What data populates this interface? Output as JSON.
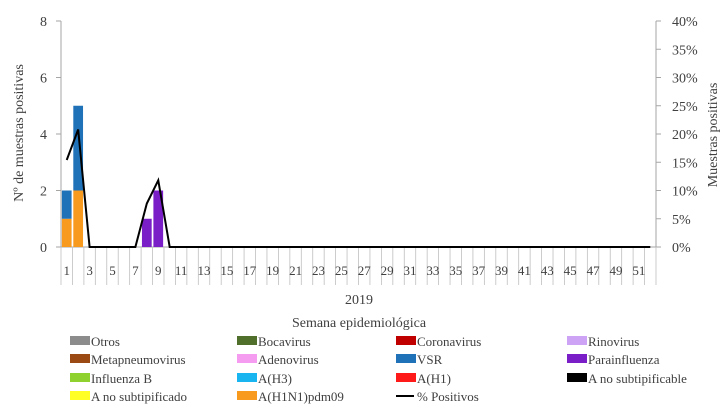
{
  "chart_data": {
    "type": "bar",
    "x_label": "Semana epidemiológica",
    "year_label": "2019",
    "y_label": "Nº de muestras positivas",
    "y2_label": "Muestras positivas",
    "y_ticks": [
      "0",
      "2",
      "4",
      "6",
      "8"
    ],
    "y2_ticks": [
      "0%",
      "5%",
      "10%",
      "15%",
      "20%",
      "25%",
      "30%",
      "35%",
      "40%"
    ],
    "ylim": [
      0,
      8
    ],
    "y2lim": [
      0,
      40
    ],
    "weeks": [
      1,
      2,
      3,
      4,
      5,
      6,
      7,
      8,
      9,
      10,
      11,
      12,
      13,
      14,
      15,
      16,
      17,
      18,
      19,
      20,
      21,
      22,
      23,
      24,
      25,
      26,
      27,
      28,
      29,
      30,
      31,
      32,
      33,
      34,
      35,
      36,
      37,
      38,
      39,
      40,
      41,
      42,
      43,
      44,
      45,
      46,
      47,
      48,
      49,
      50,
      51,
      52
    ],
    "x_tick_labels": [
      "1",
      "3",
      "5",
      "7",
      "9",
      "11",
      "13",
      "15",
      "17",
      "19",
      "21",
      "23",
      "25",
      "27",
      "29",
      "31",
      "33",
      "35",
      "37",
      "39",
      "41",
      "43",
      "45",
      "47",
      "49",
      "51"
    ],
    "stacked_series": [
      {
        "name": "A(H1N1)pdm09",
        "color": "#F79A1E",
        "values": {
          "1": 1,
          "2": 2
        }
      },
      {
        "name": "VSR",
        "color": "#1F72B8",
        "values": {
          "1": 1,
          "2": 3
        }
      },
      {
        "name": "Parainfluenza",
        "color": "#7A1FC7",
        "values": {
          "8": 1,
          "9": 2
        }
      }
    ],
    "line_series": {
      "name": "% Positivos",
      "color": "#000000",
      "values": [
        15.4,
        20.8,
        0,
        0,
        0,
        0,
        0,
        7.7,
        11.8,
        0,
        0,
        0,
        0,
        0,
        0,
        0,
        0,
        0,
        0,
        0,
        0,
        0,
        0,
        0,
        0,
        0,
        0,
        0,
        0,
        0,
        0,
        0,
        0,
        0,
        0,
        0,
        0,
        0,
        0,
        0,
        0,
        0,
        0,
        0,
        0,
        0,
        0,
        0,
        0,
        0,
        0,
        0
      ]
    },
    "legend": [
      {
        "label": "Otros",
        "color": "#8C8C8C",
        "kind": "box"
      },
      {
        "label": "Bocavirus",
        "color": "#4F6F2A",
        "kind": "box"
      },
      {
        "label": "Coronavirus",
        "color": "#C00000",
        "kind": "box"
      },
      {
        "label": "Rinovirus",
        "color": "#CCA3F5",
        "kind": "box"
      },
      {
        "label": "Metapneumovirus",
        "color": "#9C4A14",
        "kind": "box"
      },
      {
        "label": "Adenovirus",
        "color": "#F59CF0",
        "kind": "box"
      },
      {
        "label": "VSR",
        "color": "#1F72B8",
        "kind": "box"
      },
      {
        "label": "Parainfluenza",
        "color": "#7A1FC7",
        "kind": "box"
      },
      {
        "label": "Influenza  B",
        "color": "#8FD12E",
        "kind": "box"
      },
      {
        "label": "A(H3)",
        "color": "#19B5F0",
        "kind": "box"
      },
      {
        "label": "A(H1)",
        "color": "#FF1A1A",
        "kind": "box"
      },
      {
        "label": "A no subtipificable",
        "color": "#000000",
        "kind": "box"
      },
      {
        "label": "A no subtipificado",
        "color": "#FFFF26",
        "kind": "box"
      },
      {
        "label": "A(H1N1)pdm09",
        "color": "#F79A1E",
        "kind": "box"
      },
      {
        "label": "% Positivos",
        "color": "#000000",
        "kind": "line"
      }
    ]
  }
}
